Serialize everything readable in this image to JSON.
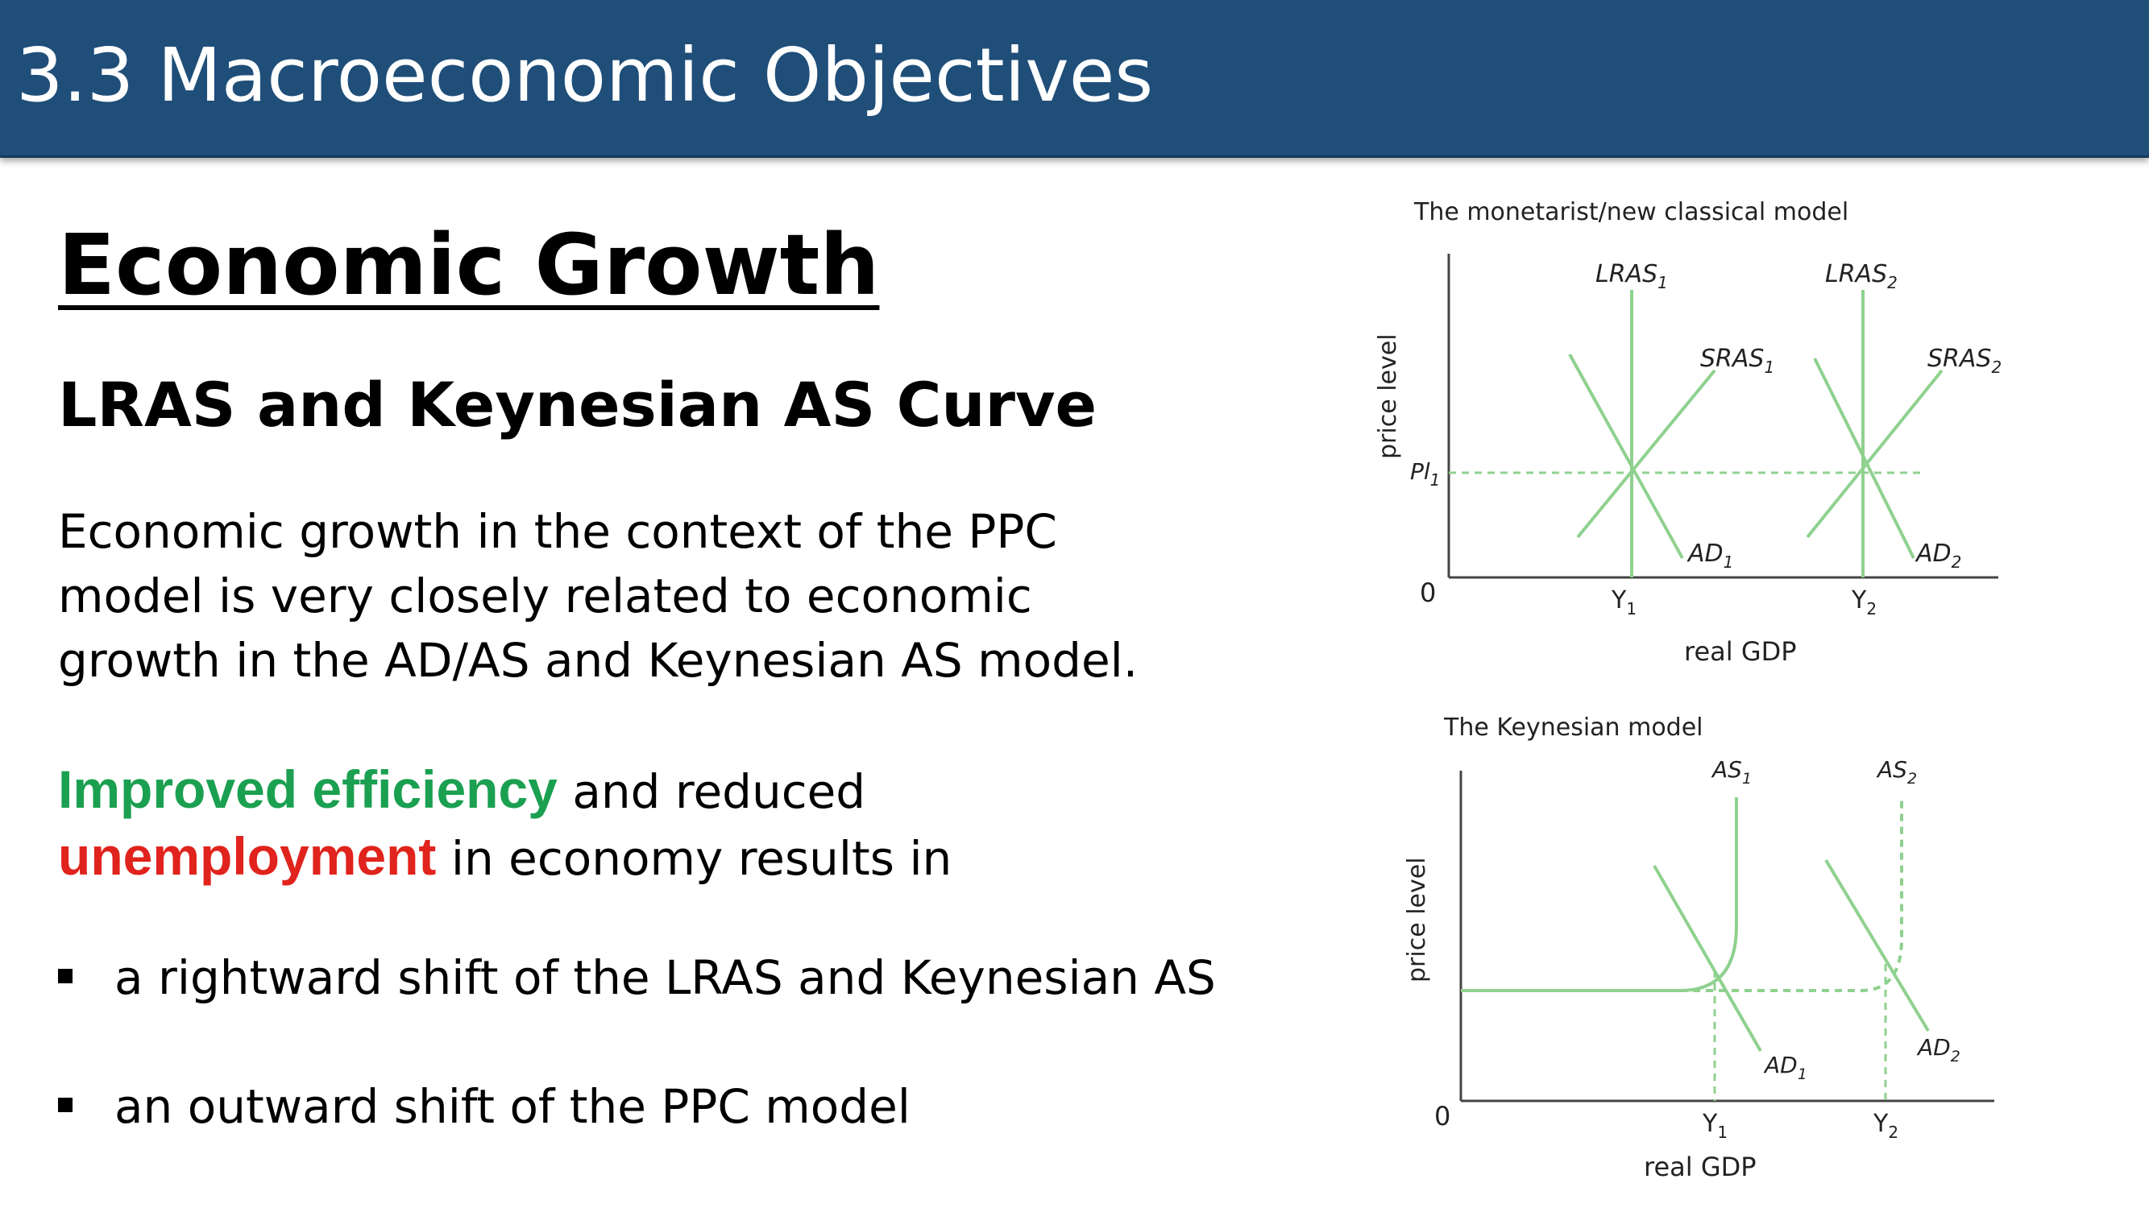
{
  "header": {
    "title": "3.3 Macroeconomic Objectives"
  },
  "content": {
    "title": "Economic Growth",
    "subtitle": "LRAS and Keynesian AS Curve",
    "paragraph1": "Economic growth in the context of the PPC model is very closely related to economic growth in the AD/AS and Keynesian AS model.",
    "p2_green": "Improved efficiency",
    "p2_mid": " and reduced ",
    "p2_red": "unemployment",
    "p2_end": " in economy results in",
    "bullets": [
      "a rightward shift of the LRAS and Keynesian AS",
      "an outward shift of the PPC model"
    ]
  },
  "diagram1": {
    "title": "The monetarist/new classical model",
    "y_label": "price level",
    "x_label": "real GDP",
    "origin": "0",
    "price_label": "Pl",
    "price_sub": "1",
    "curves": [
      {
        "name": "LRAS",
        "sub": "1"
      },
      {
        "name": "LRAS",
        "sub": "2"
      },
      {
        "name": "SRAS",
        "sub": "1"
      },
      {
        "name": "SRAS",
        "sub": "2"
      },
      {
        "name": "AD",
        "sub": "1"
      },
      {
        "name": "AD",
        "sub": "2"
      }
    ],
    "x_ticks": [
      {
        "name": "Y",
        "sub": "1"
      },
      {
        "name": "Y",
        "sub": "2"
      }
    ],
    "line_color": "#8fd18f"
  },
  "diagram2": {
    "title": "The Keynesian model",
    "y_label": "price level",
    "x_label": "real GDP",
    "origin": "0",
    "curves": [
      {
        "name": "AS",
        "sub": "1"
      },
      {
        "name": "AS",
        "sub": "2"
      },
      {
        "name": "AD",
        "sub": "1"
      },
      {
        "name": "AD",
        "sub": "2"
      }
    ],
    "x_ticks": [
      {
        "name": "Y",
        "sub": "1"
      },
      {
        "name": "Y",
        "sub": "2"
      }
    ],
    "line_color": "#8fd18f"
  },
  "colors": {
    "header_bg": "#1f4e79",
    "green_text": "#1aa050",
    "red_text": "#e0231c",
    "curve": "#8fd18f"
  }
}
